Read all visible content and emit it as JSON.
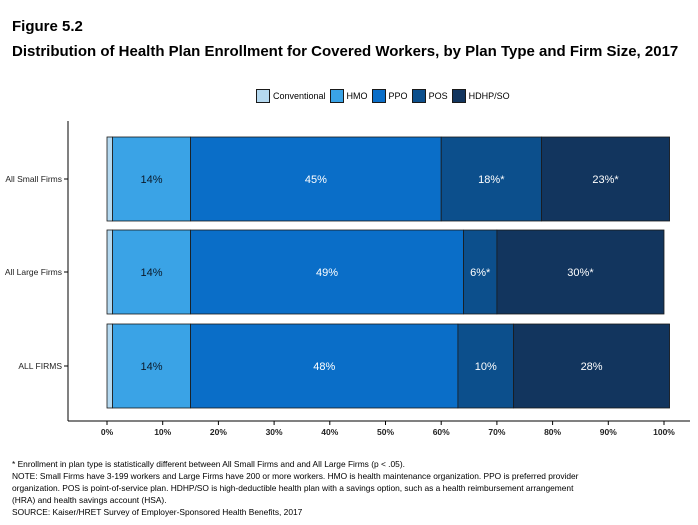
{
  "figure": {
    "label": "Figure 5.2",
    "title": "Distribution of Health Plan Enrollment for Covered Workers, by Plan Type and Firm Size, 2017"
  },
  "colors": {
    "Conventional": "#b5d9f0",
    "HMO": "#3aa3e6",
    "PPO": "#0a6ec8",
    "POS": "#0c4f8c",
    "HDHP/SO": "#12355e"
  },
  "chart_data": {
    "type": "bar",
    "orientation": "horizontal",
    "stacked": true,
    "categories": [
      "All Small Firms",
      "All Large Firms",
      "ALL FIRMS"
    ],
    "series": [
      {
        "name": "Conventional",
        "values": [
          1,
          1,
          1
        ],
        "labels": [
          "",
          "",
          ""
        ]
      },
      {
        "name": "HMO",
        "values": [
          14,
          14,
          14
        ],
        "labels": [
          "14%",
          "14%",
          "14%"
        ]
      },
      {
        "name": "PPO",
        "values": [
          45,
          49,
          48
        ],
        "labels": [
          "45%",
          "49%",
          "48%"
        ]
      },
      {
        "name": "POS",
        "values": [
          18,
          6,
          10
        ],
        "labels": [
          "18%*",
          "6%*",
          "10%"
        ]
      },
      {
        "name": "HDHP/SO",
        "values": [
          23,
          30,
          28
        ],
        "labels": [
          "23%*",
          "30%*",
          "28%"
        ]
      }
    ],
    "xlim": [
      0,
      100
    ],
    "xticks": [
      "0%",
      "10%",
      "20%",
      "30%",
      "40%",
      "50%",
      "60%",
      "70%",
      "80%",
      "90%",
      "100%"
    ],
    "legend": "top-center",
    "grid": false
  },
  "notes": [
    "* Enrollment in plan type is statistically different between All Small Firms and and All Large Firms (p < .05).",
    "NOTE: Small Firms have 3-199 workers and Large Firms have 200 or more workers. HMO is health maintenance organization. PPO is preferred provider",
    "organization. POS is point-of-service plan. HDHP/SO is high-deductible health plan with a savings option, such as a health reimbursement arrangement",
    "(HRA) and health savings account (HSA).",
    "SOURCE: Kaiser/HRET Survey of Employer-Sponsored Health Benefits, 2017"
  ]
}
